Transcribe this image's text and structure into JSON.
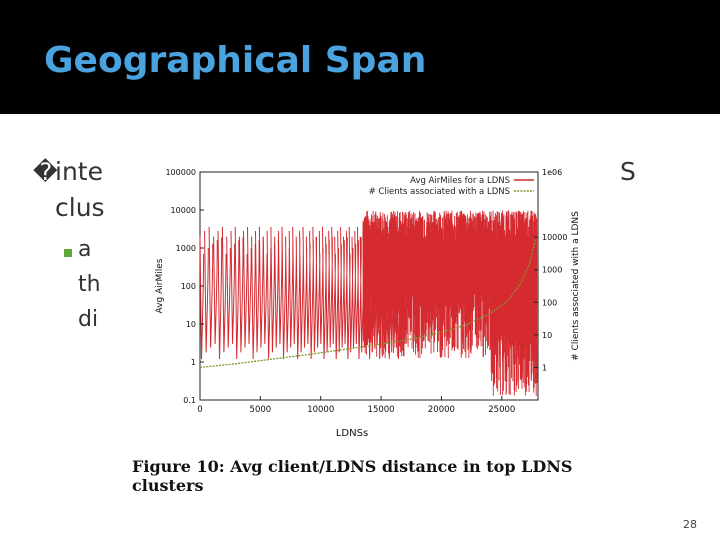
{
  "slide": {
    "title": "Geographical Span",
    "bullet_glyph": "�",
    "bullet_line1": "inte",
    "bullet_line1_end": "S",
    "bullet_line2": "clus",
    "sub_line1": "a",
    "sub_line2": "th",
    "sub_line3": "di",
    "caption_line1": "Figure 10:  Avg client/LDNS distance in top LDNS",
    "caption_line2": "clusters",
    "page_number": "28"
  },
  "colors": {
    "title": "#4aa3df",
    "title_bar": "#000000",
    "airmiles": "#d42a30",
    "clients": "#7a9a2a",
    "sub_bullet": "#5ea53a"
  },
  "chart_data": {
    "type": "line",
    "xlabel": "LDNSs",
    "ylabel": "Avg AirMiles",
    "y2label": "# Clients associated with a LDNS",
    "x_ticks": [
      "0",
      "5000",
      "10000",
      "15000",
      "20000",
      "25000"
    ],
    "x_tick_values": [
      0,
      5000,
      10000,
      15000,
      20000,
      25000
    ],
    "xlim": [
      0,
      28000
    ],
    "y_ticks": [
      "0.1",
      "1",
      "10",
      "100",
      "1000",
      "10000",
      "100000"
    ],
    "y_tick_values": [
      0.1,
      1,
      10,
      100,
      1000,
      10000,
      100000
    ],
    "ylim": [
      0.1,
      100000
    ],
    "y2_ticks": [
      "1",
      "10",
      "100",
      "1000",
      "10000",
      "1e06"
    ],
    "y2_tick_values": [
      1,
      10,
      100,
      1000,
      10000,
      1000000
    ],
    "y2lim": [
      0.1,
      1000000
    ],
    "y2_top_label": "1e06",
    "series": [
      {
        "name": "Avg AirMiles for a LDNS",
        "axis": "left",
        "description": "oscillating between ~1 and ~5000 miles, increasingly dense toward higher LDNS index"
      },
      {
        "name": "# Clients associated with a LDNS",
        "axis": "right",
        "x": [
          0,
          3000,
          6000,
          9000,
          12000,
          15000,
          18000,
          20000,
          22000,
          24000,
          25500,
          26500,
          27300,
          27800
        ],
        "values": [
          1,
          1.3,
          1.8,
          2.5,
          3.6,
          5.2,
          8,
          12,
          20,
          45,
          110,
          350,
          1500,
          9000
        ]
      }
    ],
    "legend_position": "top-right"
  }
}
